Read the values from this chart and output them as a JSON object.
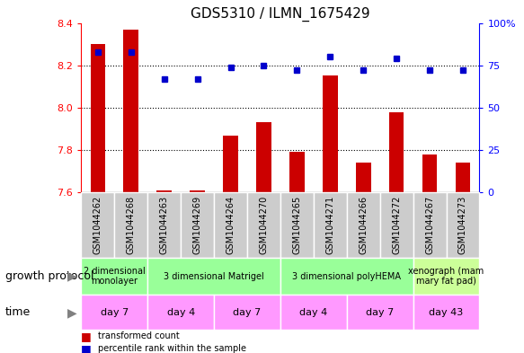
{
  "title": "GDS5310 / ILMN_1675429",
  "samples": [
    "GSM1044262",
    "GSM1044268",
    "GSM1044263",
    "GSM1044269",
    "GSM1044264",
    "GSM1044270",
    "GSM1044265",
    "GSM1044271",
    "GSM1044266",
    "GSM1044272",
    "GSM1044267",
    "GSM1044273"
  ],
  "bar_values": [
    8.3,
    8.37,
    7.61,
    7.61,
    7.87,
    7.93,
    7.79,
    8.15,
    7.74,
    7.98,
    7.78,
    7.74
  ],
  "bar_base": 7.6,
  "dot_values": [
    83,
    83,
    67,
    67,
    74,
    75,
    72,
    80,
    72,
    79,
    72,
    72
  ],
  "ylim_left": [
    7.6,
    8.4
  ],
  "ylim_right": [
    0,
    100
  ],
  "yticks_left": [
    7.6,
    7.8,
    8.0,
    8.2,
    8.4
  ],
  "yticks_right": [
    0,
    25,
    50,
    75,
    100
  ],
  "bar_color": "#cc0000",
  "dot_color": "#0000cc",
  "growth_protocol_groups": [
    {
      "label": "2 dimensional\nmonolayer",
      "start": 0,
      "end": 2,
      "color": "#99ff99"
    },
    {
      "label": "3 dimensional Matrigel",
      "start": 2,
      "end": 6,
      "color": "#99ff99"
    },
    {
      "label": "3 dimensional polyHEMA",
      "start": 6,
      "end": 10,
      "color": "#99ff99"
    },
    {
      "label": "xenograph (mam\nmary fat pad)",
      "start": 10,
      "end": 12,
      "color": "#ccff99"
    }
  ],
  "time_groups": [
    {
      "label": "day 7",
      "start": 0,
      "end": 2,
      "color": "#ff99ff"
    },
    {
      "label": "day 4",
      "start": 2,
      "end": 4,
      "color": "#ff99ff"
    },
    {
      "label": "day 7",
      "start": 4,
      "end": 6,
      "color": "#ff99ff"
    },
    {
      "label": "day 4",
      "start": 6,
      "end": 8,
      "color": "#ff99ff"
    },
    {
      "label": "day 7",
      "start": 8,
      "end": 10,
      "color": "#ff99ff"
    },
    {
      "label": "day 43",
      "start": 10,
      "end": 12,
      "color": "#ff99ff"
    }
  ],
  "legend_bar_label": "transformed count",
  "legend_dot_label": "percentile rank within the sample",
  "growth_protocol_label": "growth protocol",
  "time_label": "time",
  "sample_bg_color": "#cccccc",
  "title_fontsize": 11,
  "tick_label_fontsize": 7,
  "annotation_fontsize": 8,
  "row_label_fontsize": 9
}
